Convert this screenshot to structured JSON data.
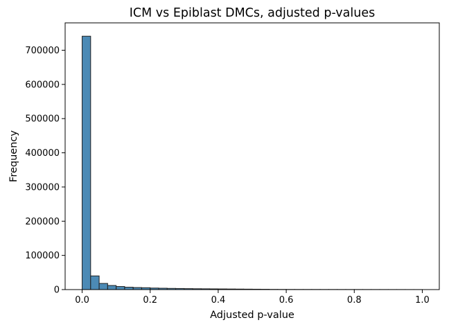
{
  "chart_data": {
    "type": "bar",
    "subtype": "histogram",
    "title": "ICM vs Epiblast DMCs, adjusted p-values",
    "xlabel": "Adjusted p-value",
    "ylabel": "Frequency",
    "xlim": [
      -0.05,
      1.05
    ],
    "ylim": [
      0,
      780000
    ],
    "xticks": [
      0.0,
      0.2,
      0.4,
      0.6,
      0.8,
      1.0
    ],
    "xtick_labels": [
      "0.0",
      "0.2",
      "0.4",
      "0.6",
      "0.8",
      "1.0"
    ],
    "yticks": [
      0,
      100000,
      200000,
      300000,
      400000,
      500000,
      600000,
      700000
    ],
    "ytick_labels": [
      "0",
      "100000",
      "200000",
      "300000",
      "400000",
      "500000",
      "600000",
      "700000"
    ],
    "bin_width": 0.025,
    "bin_starts": [
      0.0,
      0.025,
      0.05,
      0.075,
      0.1,
      0.125,
      0.15,
      0.175,
      0.2,
      0.225,
      0.25,
      0.275,
      0.3,
      0.325,
      0.35,
      0.375,
      0.4,
      0.425,
      0.45,
      0.475,
      0.5,
      0.525,
      0.55,
      0.575,
      0.6,
      0.625,
      0.65,
      0.675,
      0.7,
      0.725,
      0.75,
      0.775,
      0.8,
      0.825,
      0.85,
      0.875,
      0.9,
      0.925,
      0.95,
      0.975
    ],
    "values": [
      741000,
      40000,
      18000,
      12000,
      9000,
      7000,
      6000,
      5500,
      4500,
      4000,
      3500,
      3200,
      2800,
      2500,
      2300,
      2100,
      1900,
      1700,
      1500,
      1300,
      1100,
      900,
      600,
      500,
      450,
      420,
      400,
      380,
      360,
      340,
      320,
      300,
      280,
      260,
      240,
      220,
      200,
      180,
      160,
      140
    ],
    "bar_fill": "#4c8ab5",
    "bar_edge": "#1f1f1f",
    "grid": false,
    "legend": "none"
  }
}
